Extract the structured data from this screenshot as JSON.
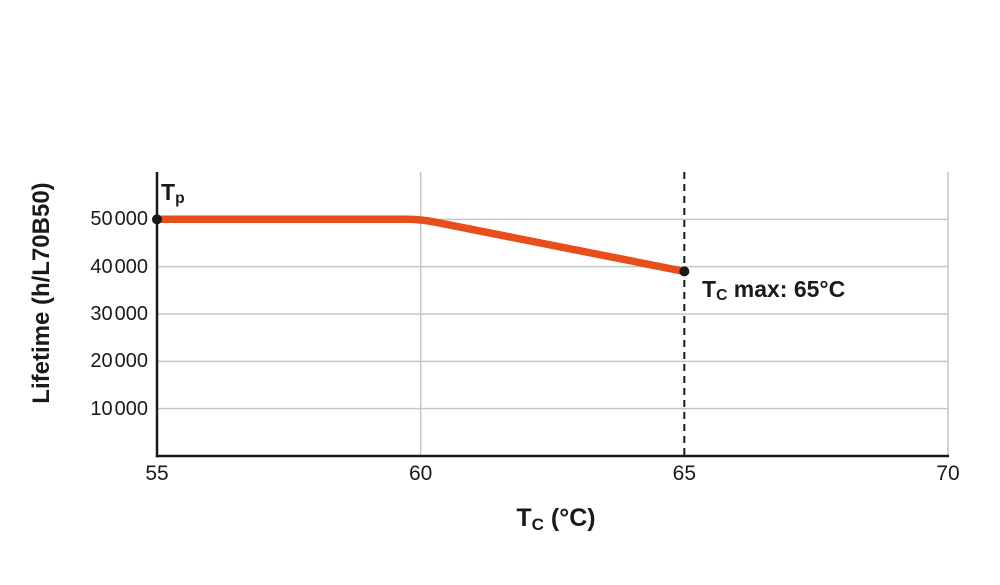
{
  "chart_data": {
    "type": "line",
    "xlabel": "Tc (°C)",
    "ylabel": "Lifetime (h/L70B50)",
    "xlabel_parts": {
      "base": "T",
      "sub": "C",
      "rest": " (°C)"
    },
    "xlim": [
      55,
      70
    ],
    "ylim": [
      0,
      60000
    ],
    "x_ticks": [
      55,
      60,
      65,
      70
    ],
    "x_tick_labels": [
      "55",
      "60",
      "65",
      "70"
    ],
    "y_ticks": [
      10000,
      20000,
      30000,
      40000,
      50000
    ],
    "y_tick_labels": [
      "10 000",
      "20 000",
      "30 000",
      "40 000",
      "50 000"
    ],
    "x_gridlines": [
      60,
      70
    ],
    "grid": true,
    "legend": "none",
    "series": [
      {
        "name": "Lifetime",
        "x": [
          55,
          60,
          65
        ],
        "values": [
          50000,
          50000,
          39000
        ],
        "color": "#e84e1b",
        "endpoint_markers": true
      }
    ],
    "dashed_vline": {
      "x": 65,
      "label": "Tc max: 65°C"
    },
    "annotations": {
      "tp": {
        "base": "T",
        "sub": "p",
        "text": "Tp"
      },
      "tc_max": {
        "base": "T",
        "sub": "C",
        "rest": " max: 65°C",
        "text": "Tc max: 65°C"
      }
    },
    "colors": {
      "line": "#e84e1b",
      "axis": "#1a1a1a",
      "grid": "#c6c6c6",
      "marker": "#1a1a1a",
      "background": "#ffffff"
    }
  }
}
